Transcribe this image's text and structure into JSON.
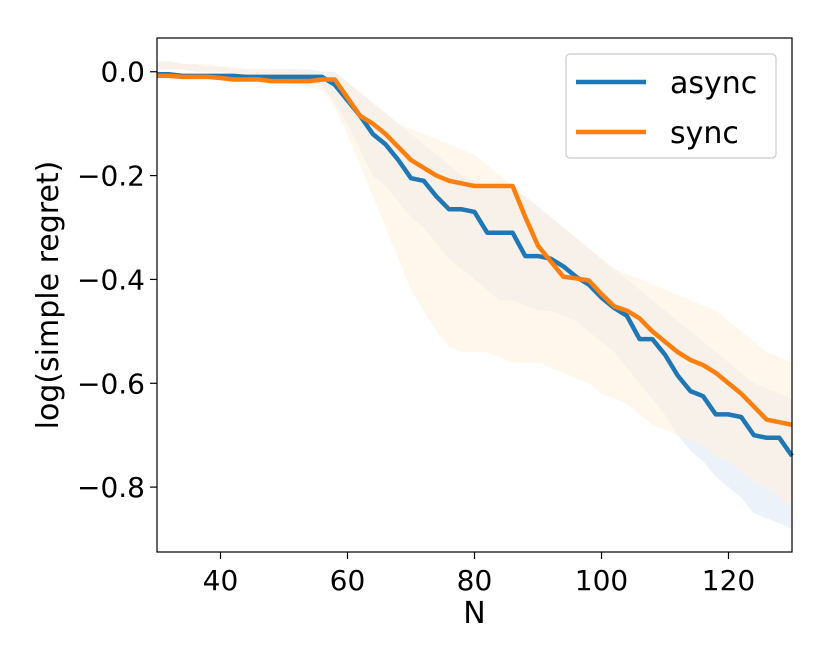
{
  "chart_data": {
    "type": "line",
    "title": "",
    "xlabel": "N",
    "ylabel": "log(simple regret)",
    "xlim": [
      30,
      130
    ],
    "ylim": [
      -0.925,
      0.065
    ],
    "xticks": [
      40,
      60,
      80,
      100,
      120
    ],
    "yticks": [
      0.0,
      -0.2,
      -0.4,
      -0.6,
      -0.8
    ],
    "xtick_labels": [
      "40",
      "60",
      "80",
      "100",
      "120"
    ],
    "ytick_labels": [
      "0.0",
      "−0.2",
      "−0.4",
      "−0.6",
      "−0.8"
    ],
    "grid": false,
    "legend_position": "top-right",
    "series": [
      {
        "name": "async",
        "color": "#1f77b4",
        "band_color": "#ddeaf6",
        "x": [
          30,
          32,
          34,
          36,
          38,
          40,
          42,
          44,
          46,
          48,
          50,
          52,
          54,
          56,
          58,
          60,
          62,
          64,
          66,
          68,
          70,
          72,
          74,
          76,
          78,
          80,
          82,
          84,
          86,
          88,
          90,
          92,
          94,
          96,
          98,
          100,
          102,
          104,
          106,
          108,
          110,
          112,
          114,
          116,
          118,
          120,
          122,
          124,
          126,
          128,
          130
        ],
        "y": [
          -0.005,
          -0.005,
          -0.008,
          -0.008,
          -0.008,
          -0.008,
          -0.008,
          -0.01,
          -0.01,
          -0.01,
          -0.01,
          -0.01,
          -0.01,
          -0.01,
          -0.025,
          -0.055,
          -0.085,
          -0.12,
          -0.14,
          -0.17,
          -0.205,
          -0.21,
          -0.24,
          -0.265,
          -0.265,
          -0.27,
          -0.31,
          -0.31,
          -0.31,
          -0.355,
          -0.355,
          -0.36,
          -0.375,
          -0.395,
          -0.41,
          -0.435,
          -0.455,
          -0.47,
          -0.515,
          -0.515,
          -0.545,
          -0.585,
          -0.615,
          -0.625,
          -0.66,
          -0.66,
          -0.665,
          -0.7,
          -0.705,
          -0.705,
          -0.74
        ],
        "lower": [
          0.005,
          0.005,
          0.005,
          0.0,
          0.0,
          0.0,
          -0.005,
          -0.01,
          -0.01,
          -0.015,
          -0.015,
          -0.015,
          -0.02,
          -0.025,
          -0.06,
          -0.1,
          -0.15,
          -0.2,
          -0.22,
          -0.25,
          -0.28,
          -0.3,
          -0.33,
          -0.36,
          -0.38,
          -0.4,
          -0.42,
          -0.44,
          -0.44,
          -0.45,
          -0.46,
          -0.46,
          -0.47,
          -0.48,
          -0.5,
          -0.52,
          -0.54,
          -0.57,
          -0.6,
          -0.63,
          -0.66,
          -0.7,
          -0.73,
          -0.75,
          -0.78,
          -0.8,
          -0.82,
          -0.85,
          -0.86,
          -0.87,
          -0.88
        ],
        "upper": [
          0.02,
          0.02,
          0.015,
          0.015,
          0.01,
          0.01,
          0.005,
          0.005,
          0.005,
          0.005,
          0.005,
          0.005,
          0.005,
          0.0,
          0.0,
          -0.02,
          -0.04,
          -0.06,
          -0.08,
          -0.1,
          -0.12,
          -0.14,
          -0.16,
          -0.18,
          -0.2,
          -0.21,
          -0.22,
          -0.22,
          -0.23,
          -0.24,
          -0.26,
          -0.28,
          -0.3,
          -0.32,
          -0.34,
          -0.36,
          -0.38,
          -0.4,
          -0.42,
          -0.44,
          -0.46,
          -0.48,
          -0.5,
          -0.52,
          -0.54,
          -0.56,
          -0.58,
          -0.6,
          -0.61,
          -0.62,
          -0.63
        ]
      },
      {
        "name": "sync",
        "color": "#ff7f0e",
        "band_color": "#fff0e0",
        "x": [
          30,
          32,
          34,
          36,
          38,
          40,
          42,
          44,
          46,
          48,
          50,
          52,
          54,
          56,
          58,
          60,
          62,
          64,
          66,
          68,
          70,
          72,
          74,
          76,
          78,
          80,
          82,
          84,
          86,
          88,
          90,
          92,
          94,
          96,
          98,
          100,
          102,
          104,
          106,
          108,
          110,
          112,
          114,
          116,
          118,
          120,
          122,
          124,
          126,
          128,
          130
        ],
        "y": [
          -0.008,
          -0.008,
          -0.01,
          -0.01,
          -0.01,
          -0.012,
          -0.015,
          -0.015,
          -0.015,
          -0.018,
          -0.018,
          -0.018,
          -0.018,
          -0.015,
          -0.015,
          -0.05,
          -0.085,
          -0.1,
          -0.12,
          -0.145,
          -0.17,
          -0.185,
          -0.2,
          -0.21,
          -0.215,
          -0.22,
          -0.22,
          -0.22,
          -0.22,
          -0.28,
          -0.335,
          -0.365,
          -0.395,
          -0.398,
          -0.402,
          -0.428,
          -0.452,
          -0.46,
          -0.475,
          -0.5,
          -0.52,
          -0.54,
          -0.555,
          -0.565,
          -0.58,
          -0.6,
          -0.62,
          -0.645,
          -0.67,
          -0.675,
          -0.68
        ],
        "lower": [
          0.005,
          0.005,
          0.005,
          0.0,
          0.0,
          0.0,
          -0.005,
          -0.01,
          -0.015,
          -0.02,
          -0.02,
          -0.025,
          -0.03,
          -0.035,
          -0.07,
          -0.12,
          -0.18,
          -0.24,
          -0.3,
          -0.36,
          -0.42,
          -0.46,
          -0.5,
          -0.53,
          -0.54,
          -0.54,
          -0.54,
          -0.55,
          -0.56,
          -0.56,
          -0.56,
          -0.57,
          -0.58,
          -0.59,
          -0.6,
          -0.62,
          -0.63,
          -0.64,
          -0.66,
          -0.68,
          -0.69,
          -0.7,
          -0.71,
          -0.72,
          -0.74,
          -0.75,
          -0.77,
          -0.79,
          -0.8,
          -0.82,
          -0.84
        ],
        "upper": [
          0.02,
          0.02,
          0.015,
          0.015,
          0.015,
          0.01,
          0.01,
          0.005,
          0.005,
          0.005,
          0.005,
          0.0,
          0.0,
          0.0,
          -0.005,
          -0.02,
          -0.04,
          -0.06,
          -0.08,
          -0.1,
          -0.11,
          -0.12,
          -0.13,
          -0.14,
          -0.15,
          -0.16,
          -0.18,
          -0.2,
          -0.22,
          -0.24,
          -0.26,
          -0.28,
          -0.3,
          -0.32,
          -0.34,
          -0.36,
          -0.38,
          -0.39,
          -0.4,
          -0.41,
          -0.42,
          -0.43,
          -0.44,
          -0.45,
          -0.46,
          -0.48,
          -0.5,
          -0.52,
          -0.54,
          -0.55,
          -0.56
        ]
      }
    ]
  }
}
